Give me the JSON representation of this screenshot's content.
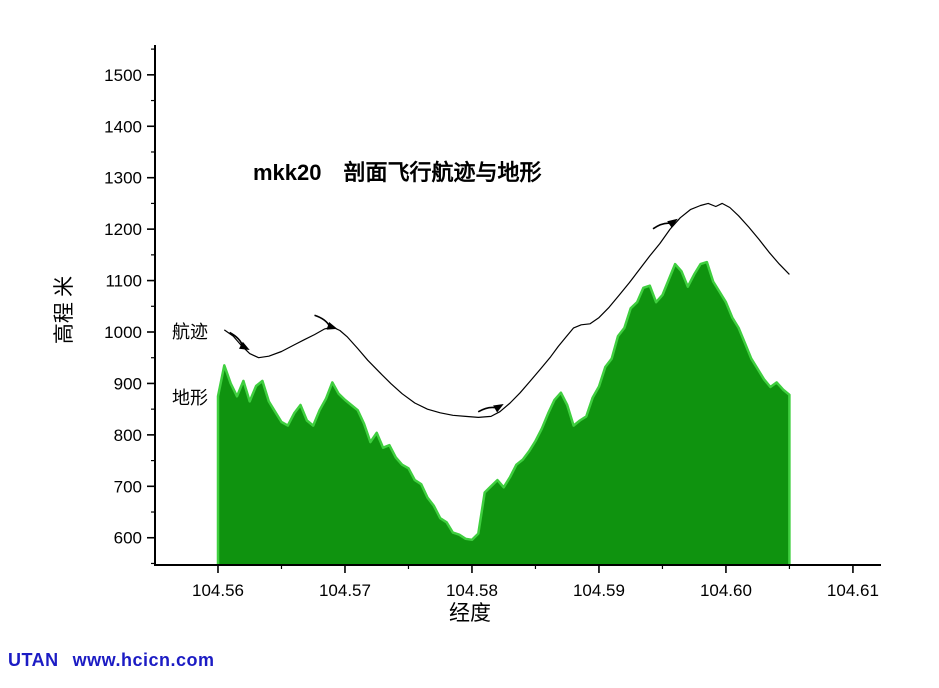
{
  "page": {
    "watermark_brand": "UTAN",
    "watermark_url": "www.hcicn.com"
  },
  "chart_data": {
    "type": "area",
    "title_bold": "mkk20",
    "title": "剖面飞行航迹与地形",
    "xlabel": "经度",
    "ylabel": "高程 米",
    "xlim": [
      104.55504,
      104.61221
    ],
    "ylim": [
      547,
      1558
    ],
    "xticks": [
      104.56,
      104.57,
      104.58,
      104.59,
      104.6,
      104.61
    ],
    "xtick_labels": [
      "104.56",
      "104.57",
      "104.58",
      "104.59",
      "104.60",
      "104.61"
    ],
    "yticks": [
      600,
      700,
      800,
      900,
      1000,
      1100,
      1200,
      1300,
      1400,
      1500
    ],
    "grid": false,
    "legend_position": "inline-left",
    "axis_color": "#000000",
    "series": [
      {
        "name": "航迹",
        "type": "line",
        "color": "#000000",
        "x": [
          104.5605,
          104.5612,
          104.5618,
          104.5625,
          104.5632,
          104.564,
          104.565,
          104.566,
          104.5668,
          104.5676,
          104.5684,
          104.569,
          104.5696,
          104.5702,
          104.571,
          104.5718,
          104.5727,
          104.5736,
          104.5745,
          104.5755,
          104.5765,
          104.5775,
          104.5785,
          104.5795,
          104.5805,
          104.5815,
          104.5822,
          104.583,
          104.5838,
          104.5846,
          104.5854,
          104.5862,
          104.5868,
          104.5874,
          104.588,
          104.5886,
          104.5893,
          104.59,
          104.5908,
          104.5916,
          104.5924,
          104.5932,
          104.594,
          104.5948,
          104.5956,
          104.5964,
          104.5972,
          104.598,
          104.5986,
          104.5992,
          104.5997,
          104.6003,
          104.601,
          104.6018,
          104.6026,
          104.6034,
          104.6042,
          104.605
        ],
        "y": [
          1004,
          992,
          975,
          958,
          950,
          953,
          962,
          975,
          985,
          995,
          1006,
          1010,
          1003,
          990,
          968,
          945,
          922,
          900,
          880,
          862,
          850,
          843,
          838,
          836,
          834,
          836,
          845,
          862,
          882,
          905,
          928,
          952,
          972,
          990,
          1008,
          1014,
          1016,
          1028,
          1048,
          1072,
          1096,
          1122,
          1148,
          1172,
          1200,
          1222,
          1238,
          1246,
          1250,
          1244,
          1250,
          1242,
          1226,
          1204,
          1180,
          1155,
          1132,
          1112
        ]
      },
      {
        "name": "地形",
        "type": "area",
        "fill": "#0f930f",
        "stroke": "#3fcf3f",
        "x0": 104.56,
        "dx": 0.0005,
        "y": [
          875,
          935,
          900,
          875,
          905,
          865,
          895,
          905,
          865,
          845,
          825,
          818,
          842,
          858,
          828,
          818,
          848,
          870,
          902,
          880,
          868,
          858,
          848,
          822,
          786,
          804,
          775,
          780,
          756,
          742,
          735,
          712,
          704,
          678,
          662,
          638,
          630,
          610,
          606,
          598,
          596,
          608,
          688,
          700,
          712,
          698,
          718,
          742,
          752,
          768,
          788,
          812,
          842,
          868,
          882,
          858,
          818,
          828,
          836,
          872,
          894,
          932,
          948,
          992,
          1008,
          1046,
          1058,
          1086,
          1090,
          1058,
          1072,
          1102,
          1132,
          1118,
          1088,
          1112,
          1132,
          1136,
          1098,
          1078,
          1058,
          1028,
          1008,
          978,
          948,
          928,
          908,
          893,
          902,
          888,
          878
        ]
      }
    ],
    "arrows": [
      {
        "x": 104.5625,
        "y": 965,
        "angle": 28
      },
      {
        "x": 104.5694,
        "y": 1006,
        "angle": 18
      },
      {
        "x": 104.5825,
        "y": 860,
        "angle": -30
      },
      {
        "x": 104.5962,
        "y": 1220,
        "angle": -35
      }
    ]
  }
}
